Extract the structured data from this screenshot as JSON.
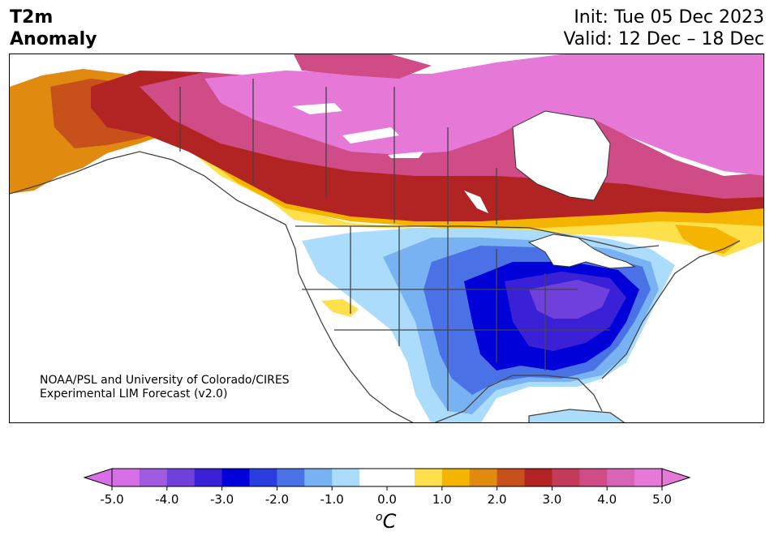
{
  "header": {
    "title_line1": "T2m",
    "title_line2": "Anomaly",
    "init": "Init: Tue 05 Dec 2023",
    "valid": "Valid: 12 Dec – 18 Dec"
  },
  "credit": {
    "line1": "NOAA/PSL and University of Colorado/CIRES",
    "line2": "Experimental LIM Forecast (v2.0)"
  },
  "colorbar": {
    "unit_sup": "o",
    "unit": "C",
    "tick_labels": [
      "-5.0",
      "-4.0",
      "-3.0",
      "-2.0",
      "-1.0",
      "0.0",
      "1.0",
      "2.0",
      "3.0",
      "4.0",
      "5.0"
    ],
    "colors": [
      "#d86ee6",
      "#a05ae0",
      "#7040dc",
      "#3a20d6",
      "#0000d8",
      "#2a3ee0",
      "#4a72e6",
      "#78b2f2",
      "#acdcfc",
      "#ffffff",
      "#ffffff",
      "#fee04c",
      "#f4b400",
      "#e08a10",
      "#c8501a",
      "#b22424",
      "#c43a5a",
      "#d04c86",
      "#d864b8",
      "#e678d8"
    ],
    "under_color": "#d86ee6",
    "over_color": "#e678d8"
  },
  "map": {
    "region": "North America",
    "anomaly_colors": {
      "cold_strong": "#3a20d6",
      "cold_mid": "#0000d8",
      "cold_light": "#78b2f2",
      "cold_faint": "#acdcfc",
      "warm_faint": "#fee04c",
      "warm_mid": "#e08a10",
      "warm_strong": "#b22424",
      "warm_max": "#e678d8"
    }
  }
}
